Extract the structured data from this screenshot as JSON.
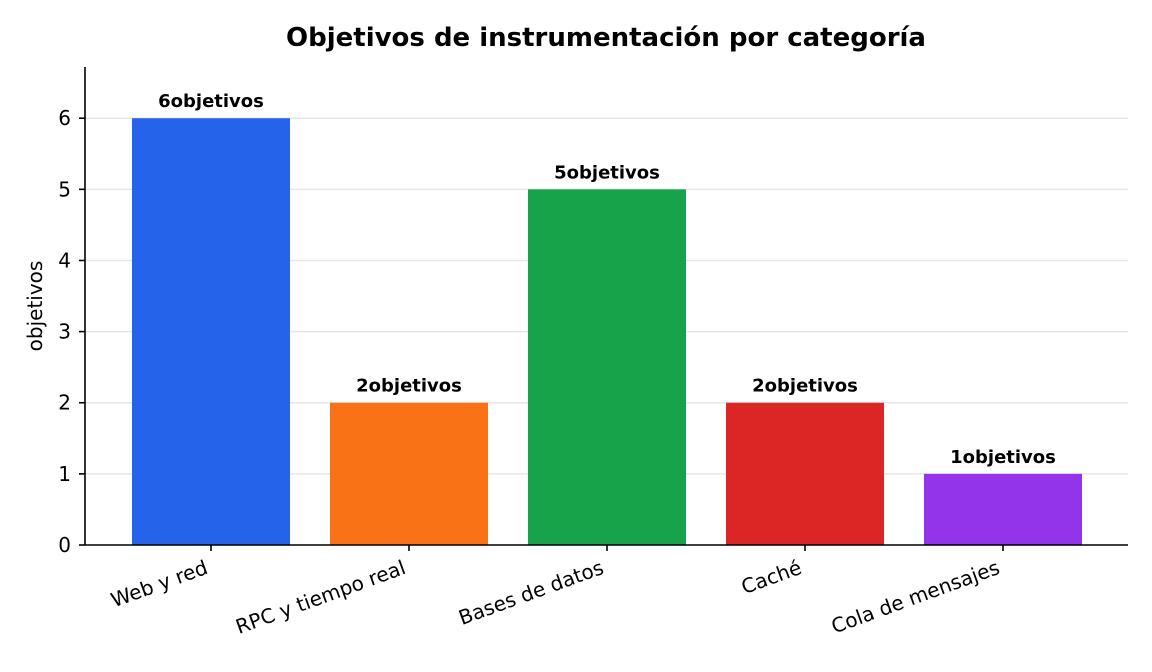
{
  "chart_data": {
    "type": "bar",
    "title": "Objetivos de instrumentación por categoría",
    "xlabel": "",
    "ylabel": "objetivos",
    "ylim": [
      0,
      6.72
    ],
    "yticks": [
      0,
      1,
      2,
      3,
      4,
      5,
      6
    ],
    "grid": "horizontal",
    "categories": [
      "Web y red",
      "RPC y tiempo real",
      "Bases de datos",
      "Caché",
      "Cola de mensajes"
    ],
    "values": [
      6,
      2,
      5,
      2,
      1
    ],
    "data_labels": [
      "6objetivos",
      "2objetivos",
      "5objetivos",
      "2objetivos",
      "1objetivos"
    ],
    "colors": [
      "#2563eb",
      "#f97316",
      "#16a34a",
      "#dc2626",
      "#9333ea"
    ]
  }
}
